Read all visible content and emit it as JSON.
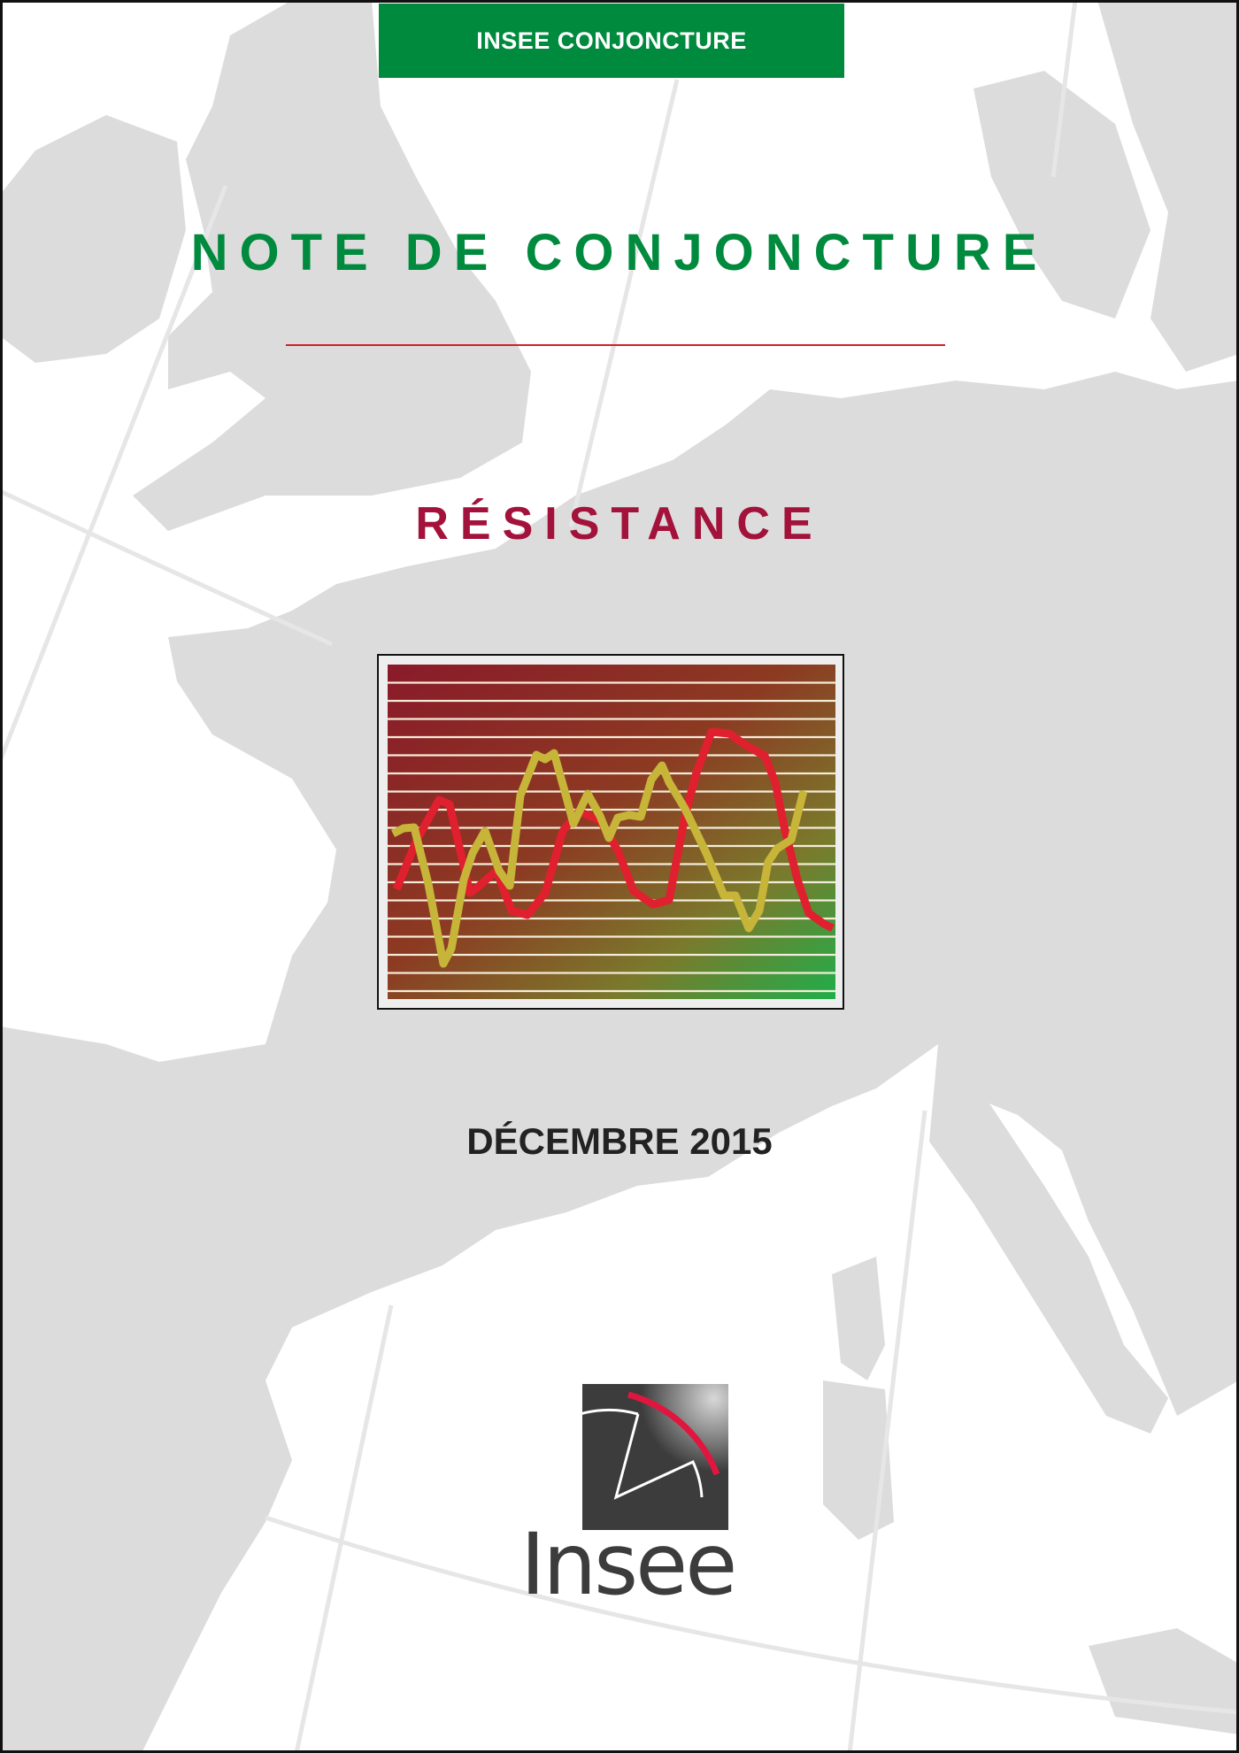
{
  "header": {
    "series_label": "INSEE CONJONCTURE"
  },
  "cover": {
    "title": "NOTE DE CONJONCTURE",
    "subtitle": "RÉSISTANCE",
    "date": "DÉCEMBRE 2015"
  },
  "logo": {
    "text": "Insee",
    "colors": {
      "square": "#3c3c3c",
      "arc": "#e0163f"
    }
  },
  "colors": {
    "brand_green": "#008a3e",
    "subtitle": "#a3123a",
    "rule": "#d0202a",
    "map_land": "#dcdcdc"
  }
}
